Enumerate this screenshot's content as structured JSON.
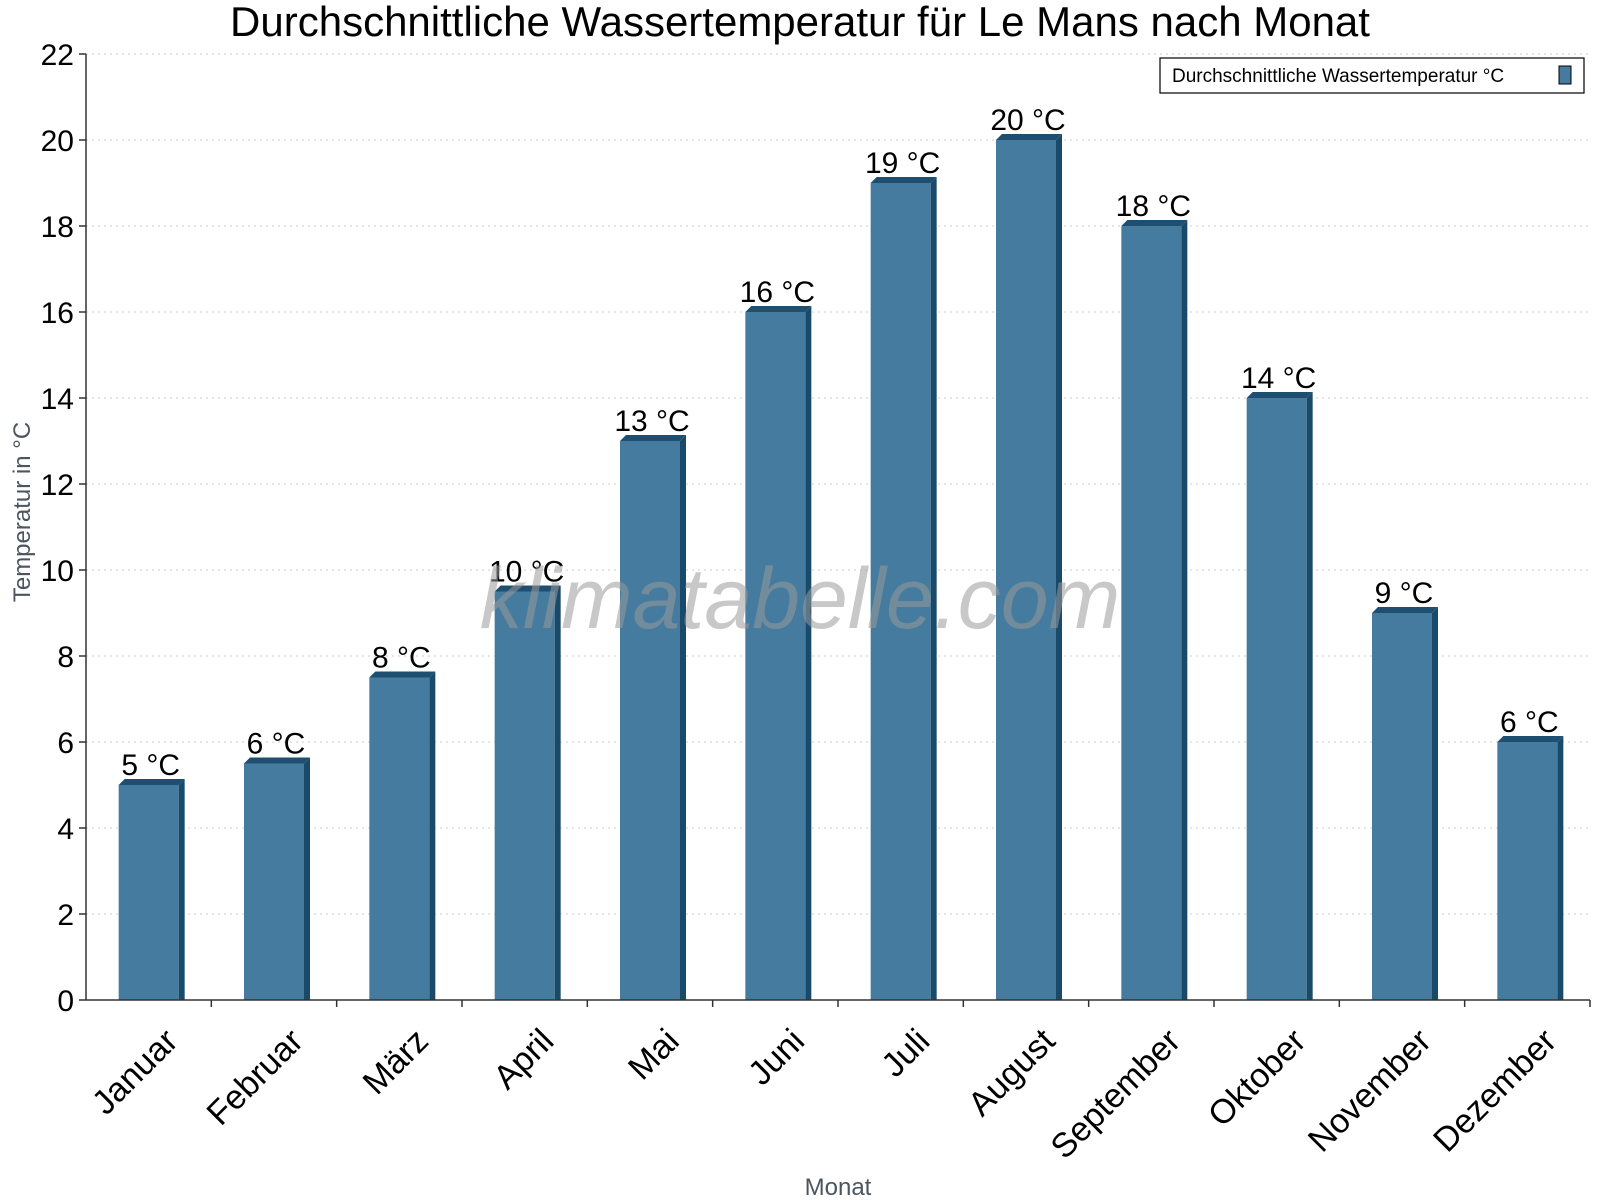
{
  "chart_data": {
    "type": "bar",
    "title": "Durchschnittliche Wassertemperatur für Le Mans nach Monat",
    "xlabel": "Monat",
    "ylabel": "Temperatur in °C",
    "categories": [
      "Januar",
      "Februar",
      "März",
      "April",
      "Mai",
      "Juni",
      "Juli",
      "August",
      "September",
      "Oktober",
      "November",
      "Dezember"
    ],
    "series": [
      {
        "name": "Durchschnittliche Wassertemperatur °C",
        "values": [
          5,
          5.5,
          7.5,
          9.5,
          13,
          16,
          19,
          20,
          18,
          14,
          9,
          6
        ],
        "labels": [
          "5 °C",
          "6 °C",
          "8 °C",
          "10 °C",
          "13 °C",
          "16 °C",
          "19 °C",
          "20 °C",
          "18 °C",
          "14 °C",
          "9 °C",
          "6 °C"
        ]
      }
    ],
    "ylim": [
      0,
      22
    ],
    "yticks": [
      0,
      2,
      4,
      6,
      8,
      10,
      12,
      14,
      16,
      18,
      20,
      22
    ],
    "grid": true,
    "legend_position": "top-right",
    "colors": {
      "bar": "#447b9e",
      "bar_top": "#1f4f70",
      "bar_side": "#1a4a6a",
      "grid": "#cccccc",
      "axis": "#333333"
    }
  },
  "watermark": "klimatabelle.com"
}
